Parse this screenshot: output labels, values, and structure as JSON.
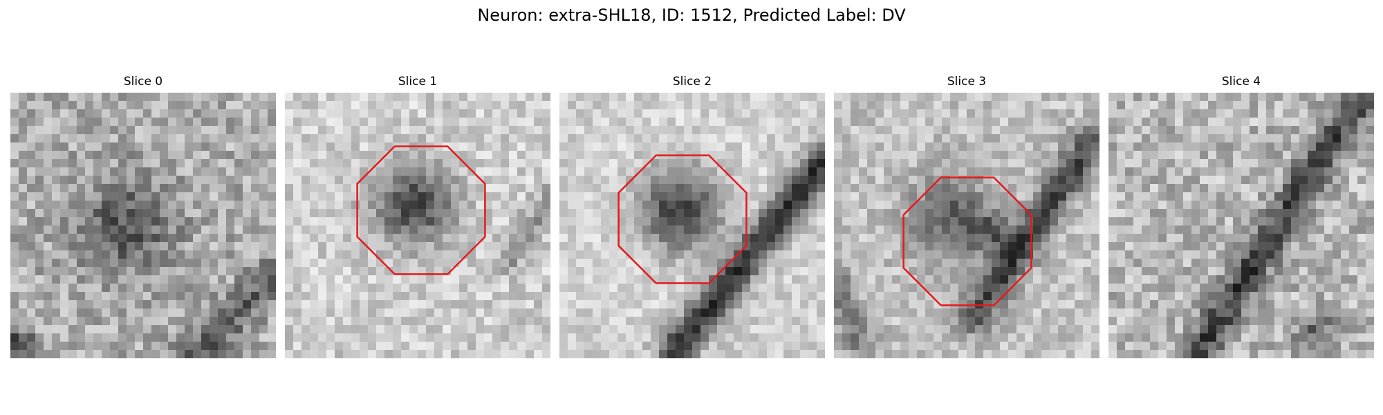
{
  "figure": {
    "title": "Neuron: extra-SHL18, ID: 1512, Predicted Label: DV"
  },
  "colors": {
    "outline": "#e41a1c",
    "background": "#ffffff"
  },
  "panels": [
    {
      "title": "Slice 0",
      "has_outline": false
    },
    {
      "title": "Slice 1",
      "has_outline": true
    },
    {
      "title": "Slice 2",
      "has_outline": true
    },
    {
      "title": "Slice 3",
      "has_outline": true
    },
    {
      "title": "Slice 4",
      "has_outline": false
    }
  ]
}
